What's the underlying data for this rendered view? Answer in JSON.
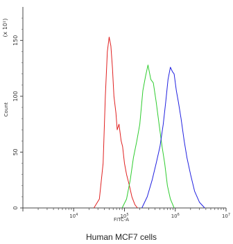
{
  "chart_data": {
    "type": "line",
    "title": "",
    "caption": "Human MCF7 cells",
    "xlabel": "FITC-A",
    "ylabel": "Count",
    "x_scale": "log",
    "xlim": [
      1000,
      10000000
    ],
    "ylim": [
      0,
      180
    ],
    "y_ticks": [
      "0",
      "50",
      "100",
      "150"
    ],
    "y_tick_values": [
      0,
      50,
      100,
      150
    ],
    "y_top_label": "(x 10¹)",
    "x_ticks": [
      {
        "value": 10000,
        "base": "10",
        "exp": "4"
      },
      {
        "value": 100000,
        "base": "10",
        "exp": "5"
      },
      {
        "value": 1000000,
        "base": "10",
        "exp": "6"
      },
      {
        "value": 10000000,
        "base": "10",
        "exp": "7"
      }
    ],
    "grid": false,
    "series": [
      {
        "color": "#e02020",
        "x": [
          25000,
          32000,
          38000,
          42000,
          46000,
          50000,
          54000,
          58000,
          62000,
          68000,
          72000,
          78000,
          86000,
          92000,
          100000,
          110000,
          125000,
          140000,
          160000,
          180000
        ],
        "y": [
          0,
          8,
          40,
          100,
          140,
          153,
          145,
          125,
          100,
          85,
          70,
          75,
          60,
          55,
          40,
          30,
          20,
          10,
          3,
          0
        ]
      },
      {
        "color": "#2ecc2e",
        "x": [
          90000,
          110000,
          130000,
          150000,
          175000,
          200000,
          230000,
          260000,
          290000,
          330000,
          370000,
          420000,
          480000,
          550000,
          620000,
          700000,
          800000,
          950000
        ],
        "y": [
          0,
          8,
          25,
          45,
          60,
          75,
          105,
          118,
          128,
          115,
          112,
          95,
          75,
          55,
          40,
          20,
          8,
          0
        ]
      },
      {
        "color": "#2020e0",
        "x": [
          220000,
          280000,
          350000,
          420000,
          500000,
          580000,
          650000,
          720000,
          800000,
          880000,
          950000,
          1050000,
          1150000,
          1300000,
          1500000,
          1700000,
          2000000,
          2400000,
          3000000,
          3800000
        ],
        "y": [
          0,
          10,
          25,
          40,
          55,
          75,
          95,
          115,
          126,
          122,
          120,
          105,
          95,
          80,
          60,
          45,
          30,
          15,
          5,
          0
        ]
      }
    ]
  }
}
